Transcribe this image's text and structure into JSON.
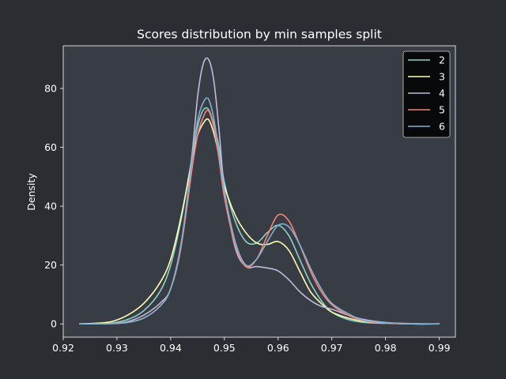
{
  "chart_data": {
    "type": "line",
    "title": "Scores distribution by min samples split",
    "xlabel": "",
    "ylabel": "Density",
    "xlim": [
      0.92,
      0.993
    ],
    "ylim": [
      -4.5,
      94.5
    ],
    "xticks": [
      0.92,
      0.93,
      0.94,
      0.95,
      0.96,
      0.97,
      0.98,
      0.99
    ],
    "xtick_labels": [
      "0.92",
      "0.93",
      "0.94",
      "0.95",
      "0.96",
      "0.97",
      "0.98",
      "0.99"
    ],
    "yticks": [
      0,
      20,
      40,
      60,
      80
    ],
    "ytick_labels": [
      "0",
      "20",
      "40",
      "60",
      "80"
    ],
    "grid": false,
    "legend_position": "top-right",
    "x": [
      0.923,
      0.926,
      0.929,
      0.932,
      0.935,
      0.938,
      0.94,
      0.942,
      0.944,
      0.945,
      0.946,
      0.947,
      0.948,
      0.949,
      0.95,
      0.952,
      0.954,
      0.956,
      0.958,
      0.96,
      0.962,
      0.964,
      0.966,
      0.968,
      0.97,
      0.973,
      0.976,
      0.98,
      0.985,
      0.99
    ],
    "series": [
      {
        "name": "2",
        "color": "#8dd3c7",
        "values": [
          0,
          0.1,
          0.3,
          1.5,
          4.5,
          11,
          20,
          36,
          57,
          67,
          72.5,
          73,
          68,
          60,
          48,
          35,
          28,
          27.5,
          31,
          33.5,
          30,
          22,
          14,
          8,
          4,
          1.5,
          0.5,
          0.2,
          0,
          0
        ]
      },
      {
        "name": "3",
        "color": "#feffb3",
        "values": [
          0,
          0.2,
          0.8,
          3,
          7,
          14,
          22,
          37,
          56,
          64,
          68,
          69.5,
          65,
          57,
          47,
          37,
          31,
          27.5,
          27,
          28,
          25,
          18,
          11,
          7,
          4,
          2,
          0.8,
          0.3,
          0,
          0
        ]
      },
      {
        "name": "4",
        "color": "#bfbbd9",
        "values": [
          0,
          0,
          0.1,
          0.8,
          3,
          7,
          12,
          27,
          58,
          77,
          88,
          90,
          83,
          66,
          46,
          26,
          19.5,
          19.5,
          19,
          18,
          15,
          11,
          8,
          6,
          5,
          3,
          1.5,
          0.5,
          0.1,
          0
        ]
      },
      {
        "name": "5",
        "color": "#fa8174",
        "values": [
          0,
          0,
          0.1,
          0.5,
          2,
          6,
          12,
          27,
          53,
          64,
          70,
          72.5,
          67,
          56,
          43,
          27,
          19.5,
          22,
          30,
          37,
          35,
          27,
          18,
          11,
          6.5,
          3,
          1,
          0.3,
          0,
          0
        ]
      },
      {
        "name": "6",
        "color": "#81b1d2",
        "values": [
          0,
          0,
          0.1,
          0.5,
          2,
          6,
          12,
          28,
          56,
          69,
          75,
          76.5,
          70,
          58,
          45,
          28,
          20,
          22,
          28,
          33.5,
          33,
          27,
          19,
          12,
          7,
          3.5,
          1.2,
          0.4,
          0,
          0
        ]
      }
    ]
  }
}
